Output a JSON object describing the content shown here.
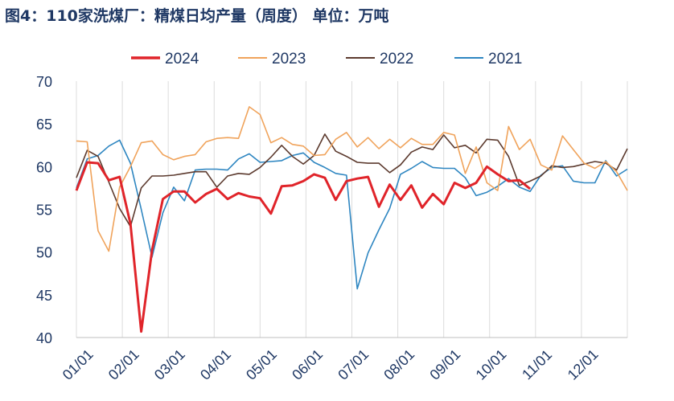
{
  "title": "图4：110家洗煤厂：精煤日均产量（周度）  单位：万吨",
  "chart_data": {
    "type": "line",
    "title": "图4：110家洗煤厂：精煤日均产量（周度）  单位：万吨",
    "xlabel": "",
    "ylabel": "",
    "ylim": [
      40,
      70
    ],
    "yticks": [
      "40",
      "45",
      "50",
      "55",
      "60",
      "65",
      "70"
    ],
    "xlim": [
      1,
      52
    ],
    "xticks": [
      "01/01",
      "02/01",
      "03/01",
      "04/01",
      "05/01",
      "06/01",
      "07/01",
      "08/01",
      "09/01",
      "10/01",
      "11/01",
      "12/01"
    ],
    "grid": "vertical",
    "legend_position": "top",
    "series": [
      {
        "name": "2024",
        "color": "#e0242a",
        "values": [
          57.2,
          60.5,
          60.4,
          58.4,
          58.8,
          53.3,
          40.7,
          50.2,
          56.2,
          57.1,
          57.1,
          55.8,
          56.8,
          57.4,
          56.2,
          56.9,
          56.5,
          56.3,
          54.5,
          57.7,
          57.8,
          58.3,
          59.1,
          58.7,
          56.1,
          58.3,
          58.6,
          58.8,
          55.3,
          57.9,
          56.1,
          57.8,
          55.2,
          56.8,
          55.6,
          58.1,
          57.5,
          58.1,
          60.0,
          59.1,
          58.3,
          58.4,
          57.4
        ]
      },
      {
        "name": "2023",
        "color": "#f0a35b",
        "values": [
          63.0,
          62.9,
          52.5,
          50.1,
          57.6,
          60.0,
          62.8,
          63.0,
          61.4,
          60.8,
          61.2,
          61.4,
          62.9,
          63.3,
          63.4,
          63.3,
          67.0,
          66.1,
          62.8,
          63.4,
          62.6,
          62.4,
          61.3,
          61.4,
          63.2,
          64.0,
          62.3,
          63.4,
          62.1,
          63.2,
          62.2,
          63.3,
          62.6,
          62.6,
          64.0,
          63.7,
          59.2,
          62.3,
          58.1,
          57.2,
          64.7,
          62.0,
          63.2,
          60.2,
          59.6,
          63.6,
          62.0,
          60.4,
          59.8,
          60.6,
          59.4,
          57.2
        ]
      },
      {
        "name": "2022",
        "color": "#5c3a2e",
        "values": [
          58.7,
          61.9,
          61.2,
          58.2,
          55.1,
          53.0,
          57.5,
          58.9,
          58.9,
          59.0,
          59.2,
          59.4,
          59.4,
          57.6,
          58.9,
          59.2,
          59.1,
          59.9,
          61.1,
          62.5,
          61.2,
          60.3,
          61.3,
          63.8,
          61.8,
          61.2,
          60.5,
          60.4,
          60.4,
          59.3,
          60.2,
          61.7,
          62.3,
          62.0,
          63.7,
          62.2,
          62.5,
          61.6,
          63.2,
          63.1,
          61.2,
          57.8,
          58.3,
          58.9,
          60.1,
          59.9,
          60.0,
          60.3,
          60.6,
          60.4,
          59.6,
          62.1
        ]
      },
      {
        "name": "2021",
        "color": "#2e86c1",
        "values": [
          57.5,
          60.9,
          61.3,
          62.4,
          63.1,
          60.4,
          55.0,
          49.4,
          54.6,
          57.6,
          56.0,
          59.6,
          59.7,
          59.7,
          59.6,
          60.9,
          61.5,
          60.5,
          60.6,
          60.7,
          61.3,
          61.6,
          60.5,
          59.9,
          59.2,
          59.0,
          45.7,
          49.9,
          52.6,
          55.1,
          59.1,
          59.8,
          60.6,
          59.9,
          59.8,
          59.8,
          58.7,
          56.6,
          57.0,
          57.7,
          58.6,
          57.6,
          57.1,
          59.0,
          59.9,
          60.1,
          58.3,
          58.1,
          58.1,
          60.7,
          58.9,
          59.7
        ]
      }
    ]
  }
}
